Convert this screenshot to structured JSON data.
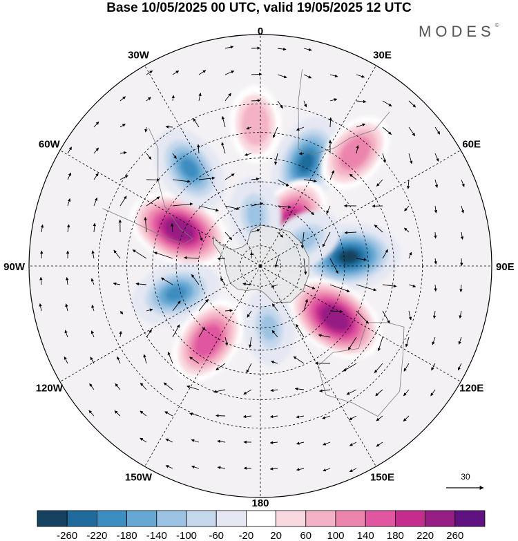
{
  "title": "Base 10/05/2025 00 UTC, valid 19/05/2025 12 UTC",
  "brand": "MODES",
  "brand_mark": "©",
  "map": {
    "projection": "south-polar-stereographic",
    "longitude_labels": [
      {
        "text": "0",
        "lon": 0
      },
      {
        "text": "30E",
        "lon": 30
      },
      {
        "text": "60E",
        "lon": 60
      },
      {
        "text": "90E",
        "lon": 90
      },
      {
        "text": "120E",
        "lon": 120
      },
      {
        "text": "150E",
        "lon": 150
      },
      {
        "text": "180",
        "lon": 180
      },
      {
        "text": "150W",
        "lon": -150
      },
      {
        "text": "120W",
        "lon": -120
      },
      {
        "text": "90W",
        "lon": -90
      },
      {
        "text": "60W",
        "lon": -60
      },
      {
        "text": "30W",
        "lon": -30
      }
    ],
    "latitude_circles": [
      -80,
      -70,
      -60,
      -50,
      -40,
      -30,
      -20
    ],
    "anomaly_centers": [
      {
        "sign": "positive",
        "value": 260,
        "lon": -66,
        "lat": -48
      },
      {
        "sign": "negative",
        "value": -180,
        "lon": -108,
        "lat": -48
      },
      {
        "sign": "negative",
        "value": -180,
        "lon": -36,
        "lat": -35
      },
      {
        "sign": "negative",
        "value": -220,
        "lon": 24,
        "lat": -38
      },
      {
        "sign": "positive",
        "value": 100,
        "lon": -2,
        "lat": -27
      },
      {
        "sign": "positive",
        "value": 220,
        "lon": 34,
        "lat": -65
      },
      {
        "sign": "negative",
        "value": -100,
        "lon": -6,
        "lat": -65
      },
      {
        "sign": "negative",
        "value": -260,
        "lon": 84,
        "lat": -48
      },
      {
        "sign": "negative",
        "value": -100,
        "lon": 60,
        "lat": -65
      },
      {
        "sign": "positive",
        "value": 260,
        "lon": 125,
        "lat": -47
      },
      {
        "sign": "positive",
        "value": 180,
        "lon": -145,
        "lat": -47
      },
      {
        "sign": "negative",
        "value": -100,
        "lon": 172,
        "lat": -60
      },
      {
        "sign": "positive",
        "value": 140,
        "lon": 40,
        "lat": -25
      }
    ]
  },
  "legend": {
    "ticks": [
      "-260",
      "-220",
      "-180",
      "-140",
      "-100",
      "-60",
      "-20",
      "20",
      "60",
      "100",
      "140",
      "180",
      "220",
      "260"
    ],
    "colors": [
      "#14425f",
      "#1f6c9c",
      "#3c8dc0",
      "#66a8d3",
      "#9cc3e2",
      "#c5d8ec",
      "#e5e8f3",
      "#ffffff",
      "#f9d8df",
      "#f4b2c6",
      "#ec85ad",
      "#e056a0",
      "#c42c8e",
      "#961e84",
      "#601280"
    ]
  },
  "reference_vector": {
    "value": "30"
  }
}
